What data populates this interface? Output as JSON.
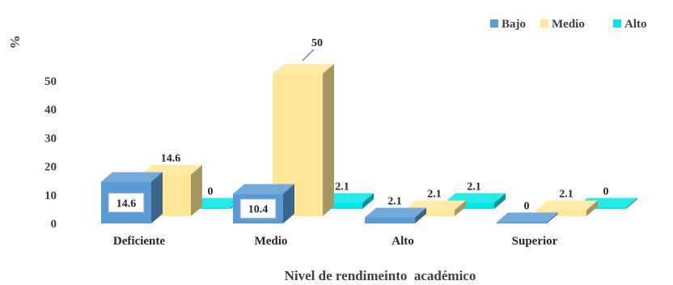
{
  "chart_data": {
    "type": "bar",
    "xlabel": "Nivel de rendimeinto  académico",
    "ylabel": "%",
    "categories": [
      "Deficiente",
      "Medio",
      "Alto",
      "Superior"
    ],
    "ylim": [
      0,
      50
    ],
    "yticks": [
      "0",
      "10",
      "20",
      "30",
      "40",
      "50"
    ],
    "grid": false,
    "legend_position": "top-right",
    "series": [
      {
        "name": "Bajo",
        "values": [
          14.6,
          10.4,
          2.1,
          0
        ],
        "labels": [
          "14.6",
          "10.4",
          "2.1",
          "0"
        ],
        "color": "#5b9bd5"
      },
      {
        "name": "Medio",
        "values": [
          14.6,
          50,
          2.1,
          2.1
        ],
        "labels": [
          "14.6",
          "50",
          "2.1",
          "2.1"
        ],
        "color": "#ffe699"
      },
      {
        "name": "Alto",
        "values": [
          0,
          2.1,
          2.1,
          0
        ],
        "labels": [
          "0",
          "2.1",
          "2.1",
          "0"
        ],
        "color": "#00e5e5"
      }
    ]
  }
}
